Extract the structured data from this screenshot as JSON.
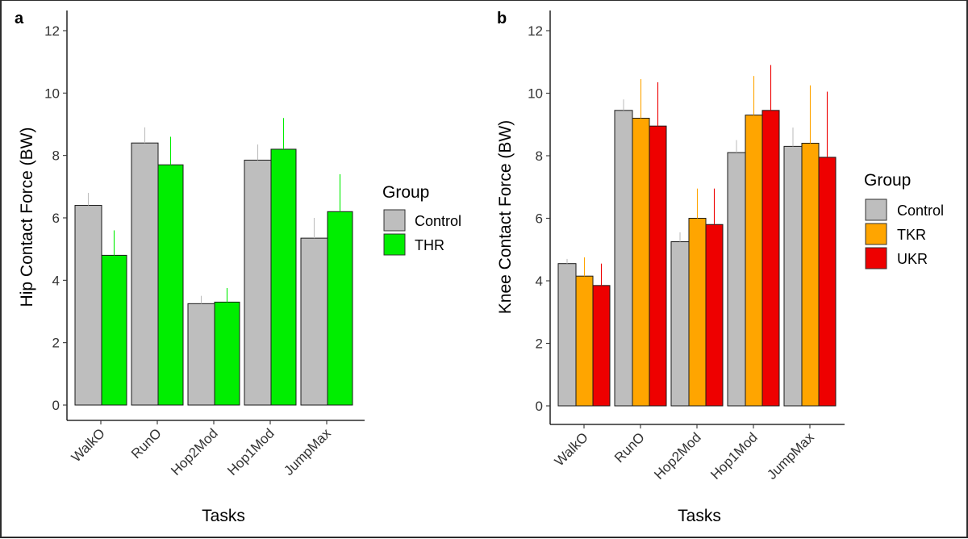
{
  "chart_data": [
    {
      "type": "bar",
      "panel_label": "a",
      "xlabel": "Tasks",
      "ylabel": "Hip Contact Force (BW)",
      "ylim": [
        0,
        12.6
      ],
      "yticks": [
        0,
        2,
        4,
        6,
        8,
        10,
        12
      ],
      "categories": [
        "WalkO",
        "RunO",
        "Hop2Mod",
        "Hop1Mod",
        "JumpMax"
      ],
      "legend_title": "Group",
      "legend_position": "right",
      "series": [
        {
          "name": "Control",
          "color": "#bebebe",
          "values": [
            6.4,
            8.4,
            3.25,
            7.85,
            5.35
          ],
          "error": [
            0.4,
            0.5,
            0.25,
            0.5,
            0.65
          ]
        },
        {
          "name": "THR",
          "color": "#00ee00",
          "values": [
            4.8,
            7.7,
            3.3,
            8.2,
            6.2
          ],
          "error": [
            0.8,
            0.9,
            0.45,
            1.0,
            1.2
          ]
        }
      ]
    },
    {
      "type": "bar",
      "panel_label": "b",
      "xlabel": "Tasks",
      "ylabel": "Knee Contact Force (BW)",
      "ylim": [
        0,
        12.6
      ],
      "yticks": [
        0,
        2,
        4,
        6,
        8,
        10,
        12
      ],
      "categories": [
        "WalkO",
        "RunO",
        "Hop2Mod",
        "Hop1Mod",
        "JumpMax"
      ],
      "legend_title": "Group",
      "legend_position": "right",
      "series": [
        {
          "name": "Control",
          "color": "#bebebe",
          "values": [
            4.55,
            9.45,
            5.25,
            8.1,
            8.3
          ],
          "error": [
            0.15,
            0.35,
            0.3,
            0.4,
            0.6
          ]
        },
        {
          "name": "TKR",
          "color": "#ffa500",
          "values": [
            4.15,
            9.2,
            6.0,
            9.3,
            8.4
          ],
          "error": [
            0.6,
            1.25,
            0.95,
            1.25,
            1.85
          ]
        },
        {
          "name": "UKR",
          "color": "#ee0000",
          "values": [
            3.85,
            8.95,
            5.8,
            9.45,
            7.95
          ],
          "error": [
            0.7,
            1.4,
            1.15,
            1.45,
            2.1
          ]
        }
      ]
    }
  ]
}
